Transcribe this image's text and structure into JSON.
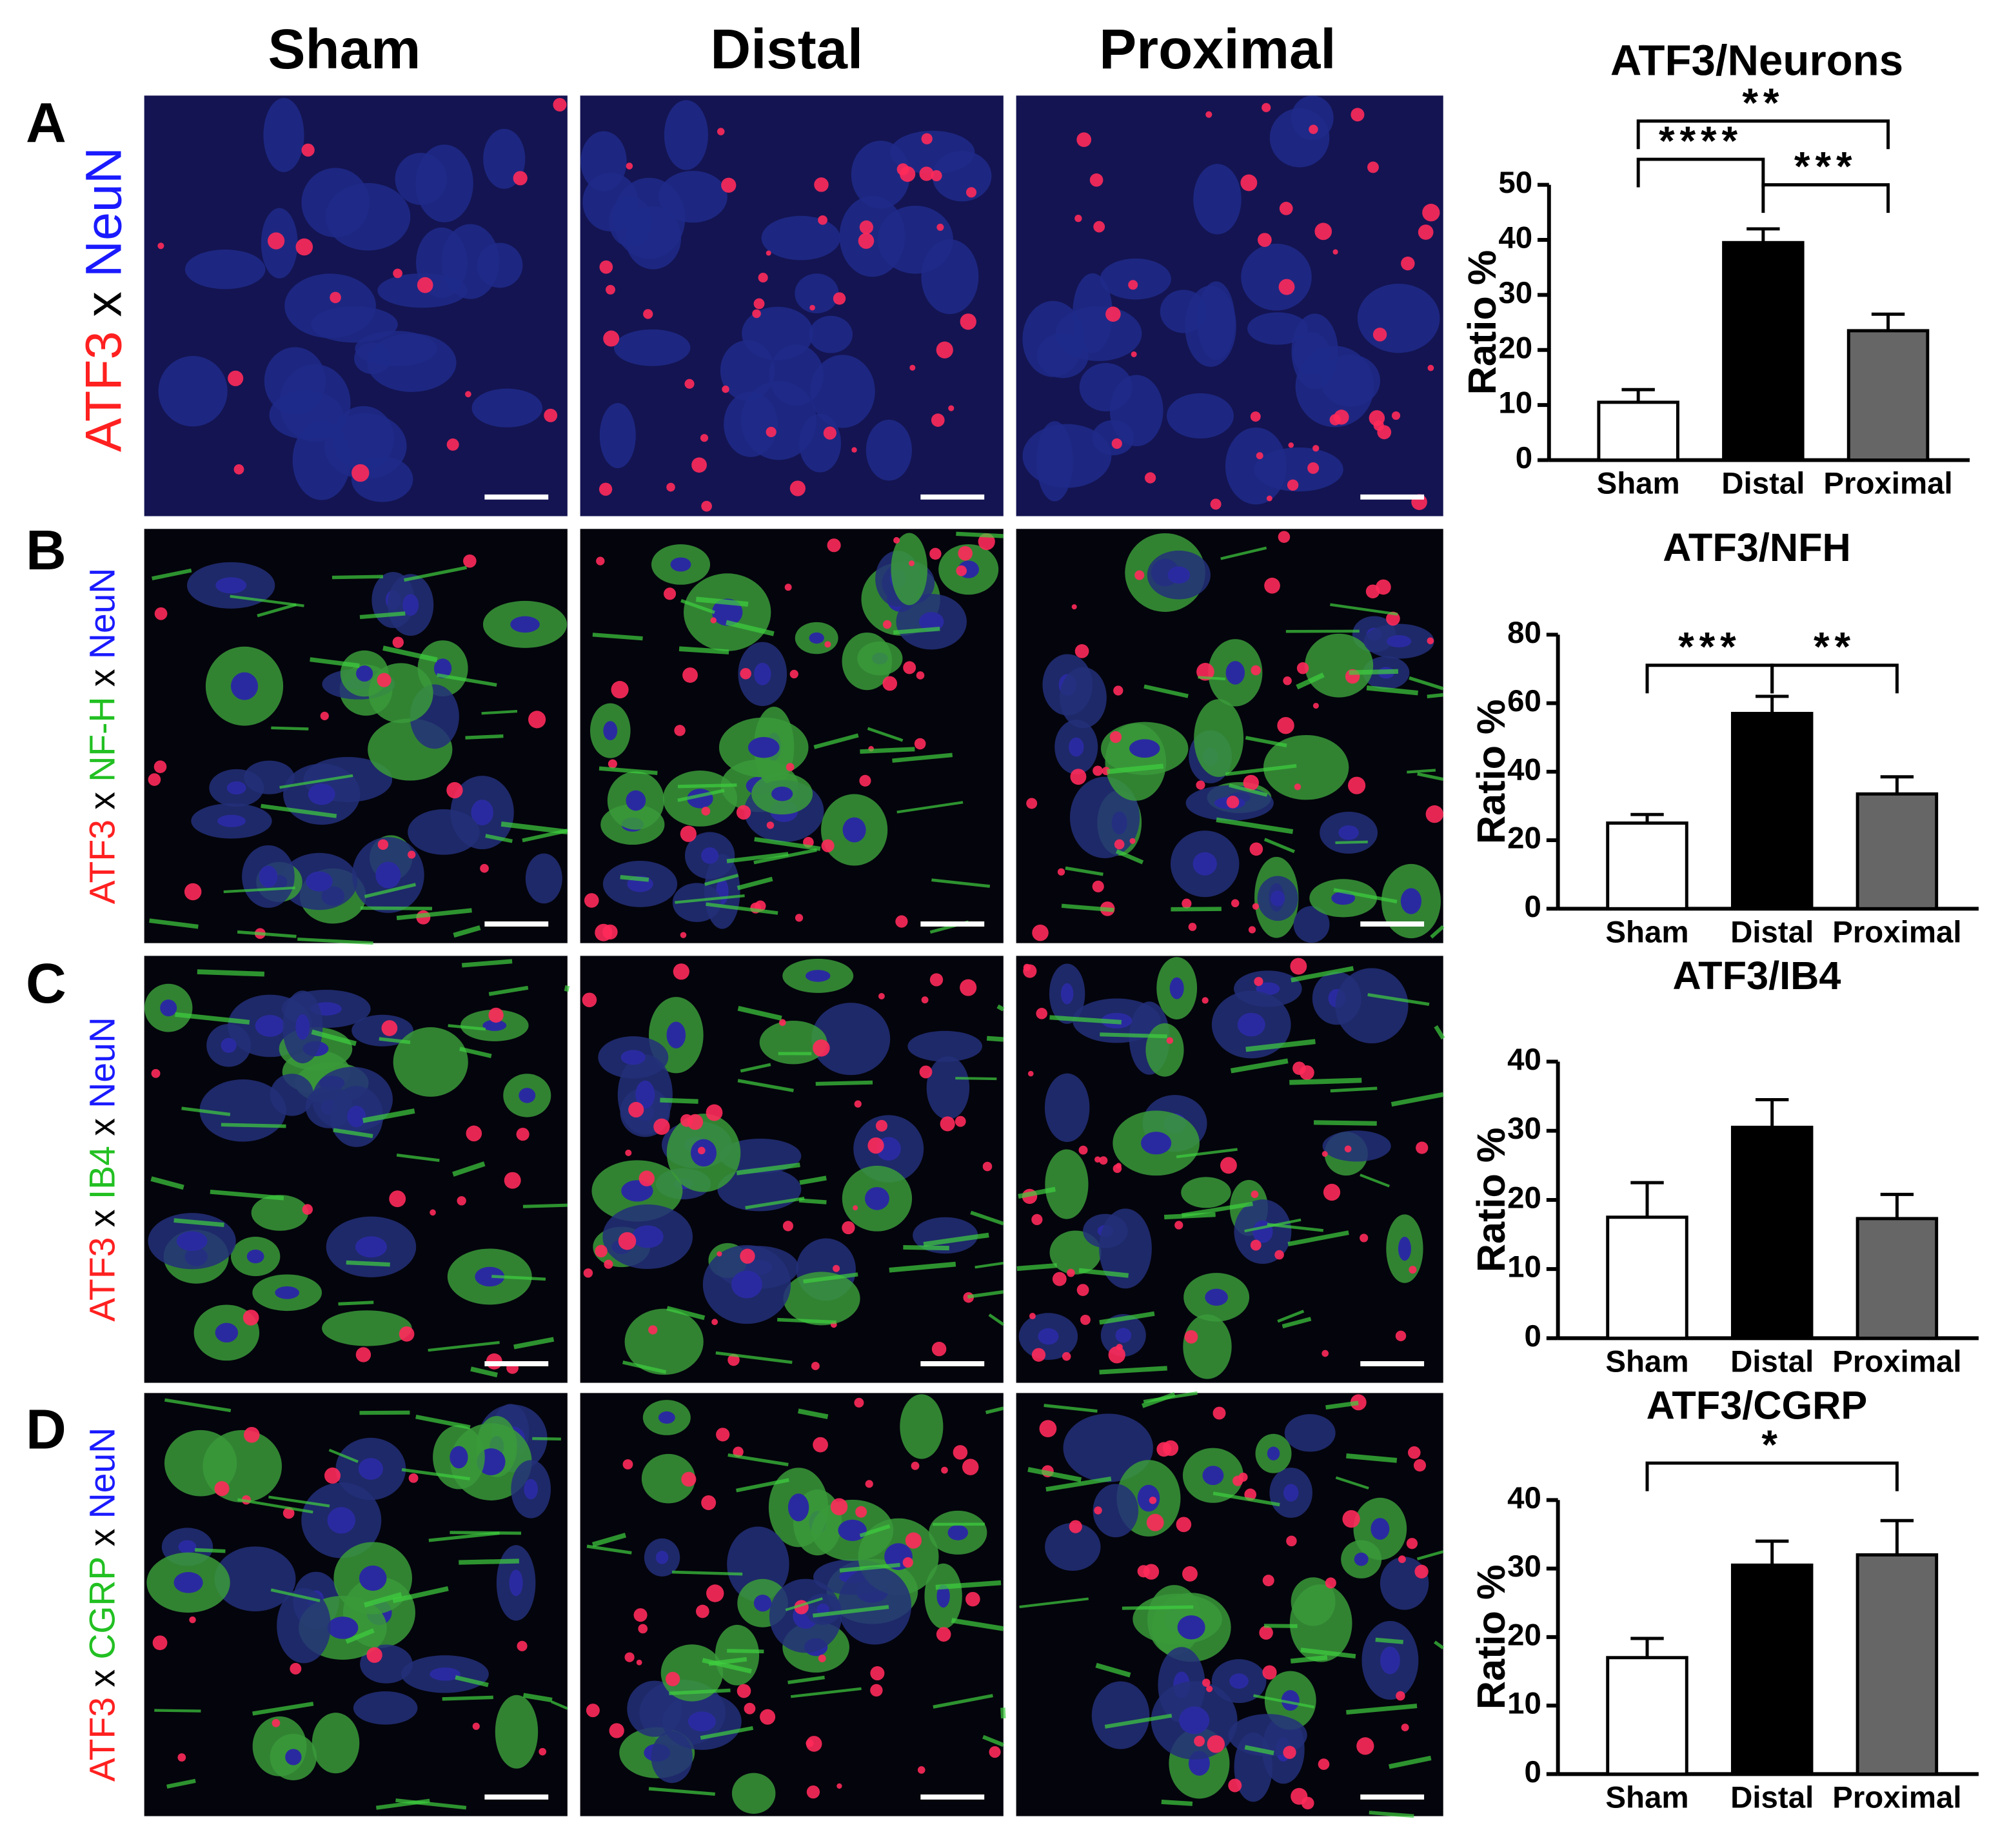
{
  "figure": {
    "column_headers": [
      "Sham",
      "Distal",
      "Proximal"
    ],
    "panel_letters": [
      "A",
      "B",
      "C",
      "D"
    ],
    "row_labels": [
      [
        {
          "text": "ATF3",
          "color": "#ff2020"
        },
        {
          "text": " x ",
          "color": "#000000"
        },
        {
          "text": "NeuN",
          "color": "#1a1aff"
        }
      ],
      [
        {
          "text": "ATF3",
          "color": "#ff2020"
        },
        {
          "text": " x ",
          "color": "#000000"
        },
        {
          "text": "NF-H",
          "color": "#22c022"
        },
        {
          "text": " x ",
          "color": "#000000"
        },
        {
          "text": "NeuN",
          "color": "#1a1aff"
        }
      ],
      [
        {
          "text": "ATF3",
          "color": "#ff2020"
        },
        {
          "text": " x ",
          "color": "#000000"
        },
        {
          "text": "IB4",
          "color": "#22c022"
        },
        {
          "text": " x ",
          "color": "#000000"
        },
        {
          "text": "NeuN",
          "color": "#1a1aff"
        }
      ],
      [
        {
          "text": "ATF3",
          "color": "#ff2020"
        },
        {
          "text": " x ",
          "color": "#000000"
        },
        {
          "text": "CGRP",
          "color": "#22c022"
        },
        {
          "text": " x ",
          "color": "#000000"
        },
        {
          "text": "NeuN",
          "color": "#1a1aff"
        }
      ]
    ]
  },
  "chart_data": [
    {
      "type": "bar",
      "title": "ATF3/Neurons",
      "y_label": "Ratio %",
      "categories": [
        "Sham",
        "Distal",
        "Proximal"
      ],
      "values": [
        10.5,
        39.5,
        23.5
      ],
      "errors": [
        2.3,
        2.5,
        3.0
      ],
      "colors": [
        "#ffffff",
        "#000000",
        "#666666"
      ],
      "ylim": [
        0,
        50
      ],
      "yticks": [
        0,
        10,
        20,
        30,
        40,
        50
      ],
      "annotations": [
        {
          "text": "**",
          "between": [
            "Sham",
            "Proximal"
          ]
        },
        {
          "text": "****",
          "between": [
            "Sham",
            "Distal"
          ]
        },
        {
          "text": "***",
          "between": [
            "Distal",
            "Proximal"
          ]
        }
      ]
    },
    {
      "type": "bar",
      "title": "ATF3/NFH",
      "y_label": "Ratio %",
      "categories": [
        "Sham",
        "Distal",
        "Proximal"
      ],
      "values": [
        25,
        57,
        33.5
      ],
      "errors": [
        2.5,
        5,
        5
      ],
      "colors": [
        "#ffffff",
        "#000000",
        "#666666"
      ],
      "ylim": [
        0,
        80
      ],
      "yticks": [
        0,
        20,
        40,
        60,
        80
      ],
      "annotations": [
        {
          "text": "***",
          "between": [
            "Sham",
            "Distal"
          ]
        },
        {
          "text": "**",
          "between": [
            "Distal",
            "Proximal"
          ]
        }
      ]
    },
    {
      "type": "bar",
      "title": "ATF3/IB4",
      "y_label": "Ratio %",
      "categories": [
        "Sham",
        "Distal",
        "Proximal"
      ],
      "values": [
        17.5,
        30.5,
        17.3
      ],
      "errors": [
        5,
        4,
        3.5
      ],
      "colors": [
        "#ffffff",
        "#000000",
        "#666666"
      ],
      "ylim": [
        0,
        40
      ],
      "yticks": [
        0,
        10,
        20,
        30,
        40
      ]
    },
    {
      "type": "bar",
      "title": "ATF3/CGRP",
      "y_label": "Ratio %",
      "categories": [
        "Sham",
        "Distal",
        "Proximal"
      ],
      "values": [
        17,
        30.5,
        32
      ],
      "errors": [
        2.8,
        3.5,
        5
      ],
      "colors": [
        "#ffffff",
        "#000000",
        "#666666"
      ],
      "ylim": [
        0,
        40
      ],
      "yticks": [
        0,
        10,
        20,
        30,
        40
      ],
      "annotations": [
        {
          "text": "*",
          "between": [
            "Sham",
            "Proximal"
          ]
        }
      ]
    }
  ]
}
